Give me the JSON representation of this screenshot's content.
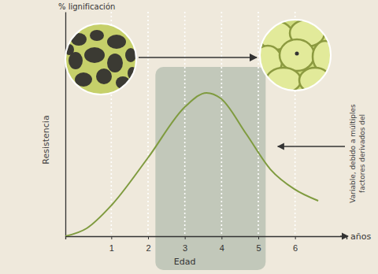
{
  "chart_data": {
    "type": "line",
    "y_label": "Resistencia",
    "y_label_top": "% lignificación",
    "x_label": "Edad",
    "x_unit_label": "años",
    "x": [
      -0.25,
      0.33,
      1,
      2,
      3.02,
      3.59,
      3.98,
      4.67,
      5.33,
      5.98,
      6.63
    ],
    "values": [
      0,
      3.5,
      13.7,
      35,
      57.9,
      63.9,
      61.4,
      45.6,
      29.8,
      21,
      15.8
    ],
    "color": "#7f9b3f",
    "xlim": [
      -0.25,
      7.4
    ],
    "xticks": [
      1,
      2,
      3,
      4,
      5,
      6
    ],
    "ylim": [
      0,
      100
    ],
    "yticks": [],
    "grid": true,
    "tick_labels": "x",
    "shaded_range": [
      2.2,
      5.2
    ],
    "annotations": [
      {
        "lines": [
          "Variable, debido a múltiples",
          "factores derivados del"
        ],
        "x": 5.4,
        "y": 40
      }
    ]
  }
}
